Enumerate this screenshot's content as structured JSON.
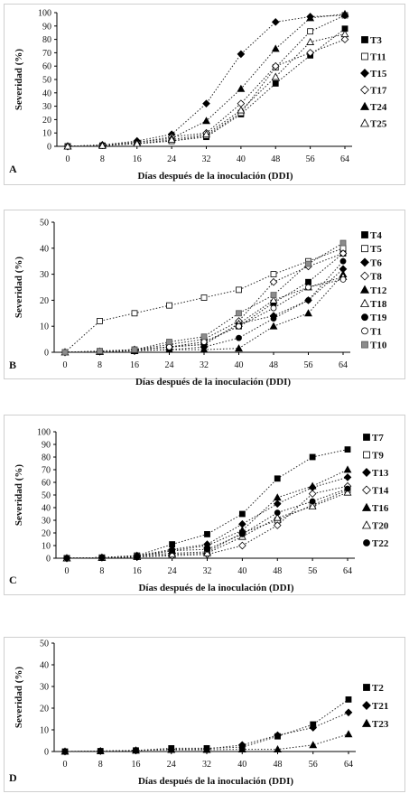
{
  "chart_data": [
    {
      "type": "line",
      "panel_label": "A",
      "xlabel": "Días después de la inoculación (DDI)",
      "ylabel": "Severidad (%)",
      "x": [
        0,
        8,
        16,
        24,
        32,
        40,
        48,
        56,
        64
      ],
      "ylim": [
        0,
        100
      ],
      "yticks": [
        0,
        10,
        20,
        30,
        40,
        50,
        60,
        70,
        80,
        90,
        100
      ],
      "series": [
        {
          "name": "T3",
          "marker": "square-filled",
          "values": [
            0,
            0.5,
            2,
            4,
            7,
            24,
            47,
            68,
            88
          ]
        },
        {
          "name": "T11",
          "marker": "square-open",
          "values": [
            0,
            0.5,
            2,
            4,
            8,
            25,
            59,
            86,
            98
          ]
        },
        {
          "name": "T15",
          "marker": "diamond-filled",
          "values": [
            0,
            1,
            4,
            9,
            32,
            69,
            93,
            97,
            98
          ]
        },
        {
          "name": "T17",
          "marker": "diamond-open",
          "values": [
            0,
            1,
            3,
            7,
            10,
            32,
            60,
            70,
            80
          ]
        },
        {
          "name": "T24",
          "marker": "triangle-filled",
          "values": [
            0,
            1,
            3,
            6,
            19,
            43,
            73,
            96,
            99
          ]
        },
        {
          "name": "T25",
          "marker": "triangle-open",
          "values": [
            0,
            0.5,
            2,
            5,
            9,
            27,
            52,
            78,
            84
          ]
        }
      ],
      "legend_position": "right"
    },
    {
      "type": "line",
      "panel_label": "B",
      "xlabel": "Días después de la inoculación (DDI)",
      "ylabel": "Severidad (%)",
      "x": [
        0,
        8,
        16,
        24,
        32,
        40,
        48,
        56,
        64
      ],
      "ylim": [
        0,
        50
      ],
      "yticks": [
        0,
        10,
        20,
        30,
        40,
        50
      ],
      "series": [
        {
          "name": "T4",
          "marker": "square-filled",
          "values": [
            0,
            0.3,
            1,
            2,
            4,
            10,
            19,
            27,
            38
          ]
        },
        {
          "name": "T5",
          "marker": "square-open",
          "values": [
            0,
            12,
            15,
            18,
            21,
            24,
            30,
            35,
            40
          ]
        },
        {
          "name": "T6",
          "marker": "diamond-filled",
          "values": [
            0,
            0.3,
            1,
            2,
            3,
            11,
            14,
            20,
            32
          ]
        },
        {
          "name": "T8",
          "marker": "diamond-open",
          "values": [
            0,
            0.3,
            1,
            3,
            5,
            12,
            27,
            33,
            38
          ]
        },
        {
          "name": "T12",
          "marker": "triangle-filled",
          "values": [
            0,
            0.2,
            0.5,
            1,
            1,
            1.5,
            10,
            15,
            30
          ]
        },
        {
          "name": "T18",
          "marker": "triangle-open",
          "values": [
            0,
            0.3,
            1,
            2,
            3,
            11,
            20,
            25,
            29
          ]
        },
        {
          "name": "T19",
          "marker": "circle-filled",
          "values": [
            0,
            0.3,
            0.8,
            1,
            2,
            5.5,
            13,
            20,
            35
          ]
        },
        {
          "name": "T1",
          "marker": "circle-open",
          "values": [
            0,
            0.3,
            1,
            2,
            4,
            10,
            17,
            25,
            28
          ]
        },
        {
          "name": "T10",
          "marker": "square-gray",
          "values": [
            0,
            0.5,
            1,
            4,
            6,
            15,
            22,
            34,
            42
          ]
        }
      ],
      "legend_position": "right"
    },
    {
      "type": "line",
      "panel_label": "C",
      "xlabel": "Días después de la inoculación (DDI)",
      "ylabel": "Severidad (%)",
      "x": [
        0,
        8,
        16,
        24,
        32,
        40,
        48,
        56,
        64
      ],
      "ylim": [
        0,
        100
      ],
      "yticks": [
        0,
        10,
        20,
        30,
        40,
        50,
        60,
        70,
        80,
        90,
        100
      ],
      "series": [
        {
          "name": "T7",
          "marker": "square-filled",
          "values": [
            0,
            0.5,
            2,
            11,
            19,
            35,
            63,
            80,
            86
          ]
        },
        {
          "name": "T9",
          "marker": "square-open",
          "values": [
            0,
            0.5,
            2,
            4,
            5,
            20,
            30,
            42,
            54
          ]
        },
        {
          "name": "T13",
          "marker": "diamond-filled",
          "values": [
            0,
            0.5,
            2,
            7,
            11,
            27,
            43,
            56,
            64
          ]
        },
        {
          "name": "T14",
          "marker": "diamond-open",
          "values": [
            0,
            0.5,
            1,
            2,
            3,
            10,
            26,
            51,
            57
          ]
        },
        {
          "name": "T16",
          "marker": "triangle-filled",
          "values": [
            0,
            0.5,
            2,
            6,
            10,
            22,
            48,
            57,
            70
          ]
        },
        {
          "name": "T20",
          "marker": "triangle-open",
          "values": [
            0,
            0.5,
            1,
            3,
            4,
            17,
            32,
            41,
            52
          ]
        },
        {
          "name": "T22",
          "marker": "circle-filled",
          "values": [
            0,
            0.5,
            1,
            6,
            7,
            19,
            36,
            45,
            55
          ]
        }
      ],
      "legend_position": "right"
    },
    {
      "type": "line",
      "panel_label": "D",
      "xlabel": "Días después de la inoculación (DDI)",
      "ylabel": "Severidad (%)",
      "x": [
        0,
        8,
        16,
        24,
        32,
        40,
        48,
        56,
        64
      ],
      "ylim": [
        0,
        50
      ],
      "yticks": [
        0,
        10,
        20,
        30,
        40,
        50
      ],
      "series": [
        {
          "name": "T2",
          "marker": "square-filled",
          "values": [
            0,
            0.2,
            0.5,
            1.5,
            1.5,
            2,
            7,
            12.5,
            24
          ]
        },
        {
          "name": "T21",
          "marker": "diamond-filled",
          "values": [
            0,
            0.2,
            0.5,
            1,
            1.2,
            3,
            7.5,
            11,
            18
          ]
        },
        {
          "name": "T23",
          "marker": "triangle-filled",
          "values": [
            0,
            0.2,
            0.5,
            0.8,
            0.8,
            1,
            1,
            3,
            8
          ]
        }
      ],
      "legend_position": "right"
    }
  ]
}
